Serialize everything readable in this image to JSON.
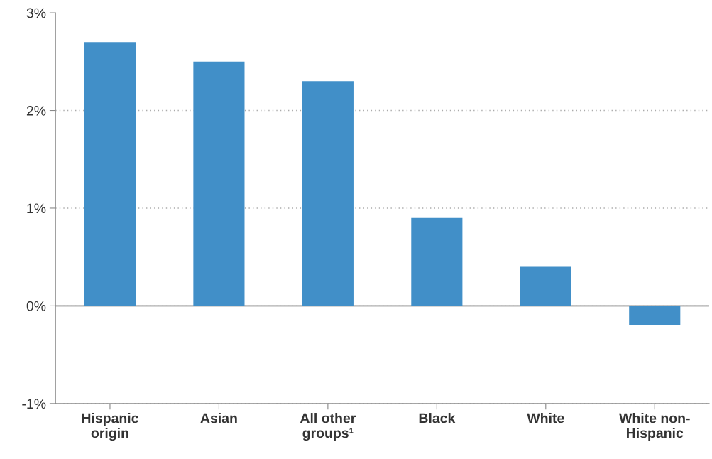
{
  "chart_data": {
    "type": "bar",
    "categories": [
      "Hispanic\norigin",
      "Asian",
      "All other\ngroups¹",
      "Black",
      "White",
      "White non-\nHispanic"
    ],
    "values": [
      2.7,
      2.5,
      2.3,
      0.9,
      0.4,
      -0.2
    ],
    "color": "#418fc8",
    "ylim": [
      -1,
      3
    ],
    "yticks": [
      {
        "value": -1,
        "label": "-1%"
      },
      {
        "value": 0,
        "label": "0%"
      },
      {
        "value": 1,
        "label": "1%"
      },
      {
        "value": 2,
        "label": "2%"
      },
      {
        "value": 3,
        "label": "3%"
      }
    ],
    "grid": "y",
    "ref_lines": [
      {
        "axis": "y",
        "value": 0,
        "color": "#b0b0b0"
      }
    ]
  }
}
